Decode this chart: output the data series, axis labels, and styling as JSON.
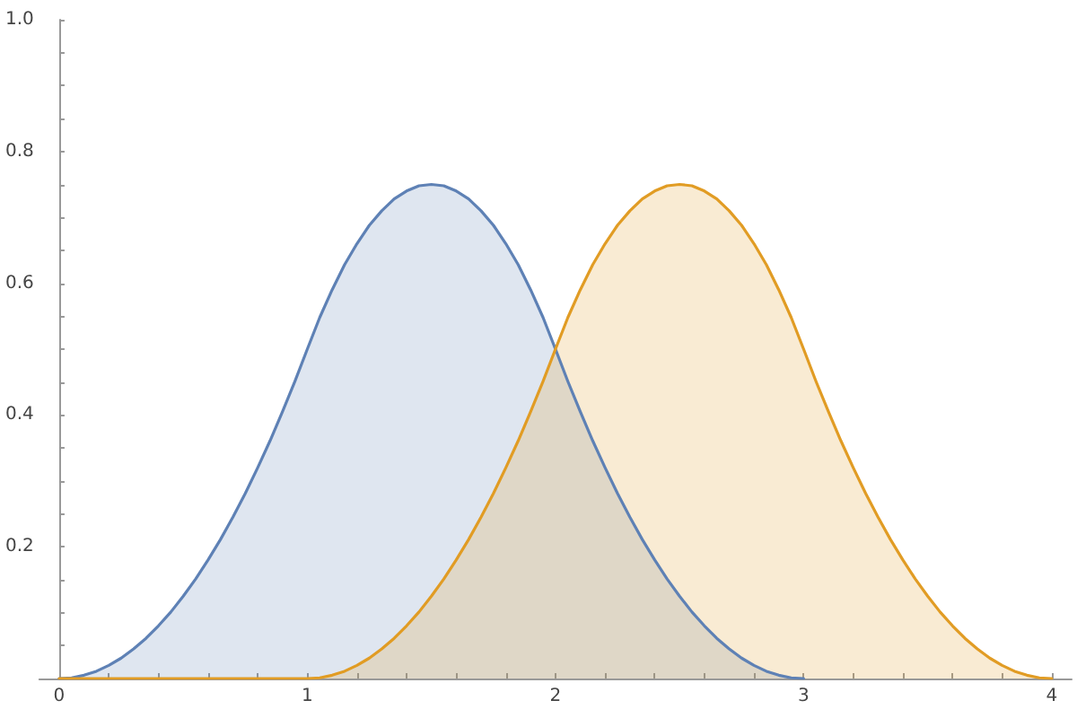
{
  "chart_data": {
    "type": "area",
    "series": [
      {
        "color": "#5e81b5",
        "x": [
          0,
          0.05,
          0.1,
          0.15,
          0.2,
          0.25,
          0.3,
          0.35,
          0.4,
          0.45,
          0.5,
          0.55,
          0.6,
          0.65,
          0.7,
          0.75,
          0.8,
          0.85,
          0.9,
          0.95,
          1,
          1.05,
          1.1,
          1.15,
          1.2,
          1.25,
          1.3,
          1.35,
          1.4,
          1.45,
          1.5,
          1.55,
          1.6,
          1.65,
          1.7,
          1.75,
          1.8,
          1.85,
          1.9,
          1.95,
          2,
          2.05,
          2.1,
          2.15,
          2.2,
          2.25,
          2.3,
          2.35,
          2.4,
          2.45,
          2.5,
          2.55,
          2.6,
          2.65,
          2.7,
          2.75,
          2.8,
          2.85,
          2.9,
          2.95,
          3
        ],
        "values": [
          0,
          0.001,
          0.005,
          0.011,
          0.02,
          0.031,
          0.045,
          0.061,
          0.08,
          0.101,
          0.125,
          0.151,
          0.18,
          0.211,
          0.245,
          0.281,
          0.32,
          0.361,
          0.405,
          0.451,
          0.5,
          0.548,
          0.59,
          0.628,
          0.66,
          0.688,
          0.71,
          0.728,
          0.74,
          0.748,
          0.75,
          0.748,
          0.74,
          0.728,
          0.71,
          0.688,
          0.66,
          0.628,
          0.59,
          0.548,
          0.5,
          0.451,
          0.405,
          0.361,
          0.32,
          0.281,
          0.245,
          0.211,
          0.18,
          0.151,
          0.125,
          0.101,
          0.08,
          0.061,
          0.045,
          0.031,
          0.02,
          0.011,
          0.005,
          0.001,
          0
        ]
      },
      {
        "color": "#e19c24",
        "x": [
          0,
          1,
          1.05,
          1.1,
          1.15,
          1.2,
          1.25,
          1.3,
          1.35,
          1.4,
          1.45,
          1.5,
          1.55,
          1.6,
          1.65,
          1.7,
          1.75,
          1.8,
          1.85,
          1.9,
          1.95,
          2,
          2.05,
          2.1,
          2.15,
          2.2,
          2.25,
          2.3,
          2.35,
          2.4,
          2.45,
          2.5,
          2.55,
          2.6,
          2.65,
          2.7,
          2.75,
          2.8,
          2.85,
          2.9,
          2.95,
          3,
          3.05,
          3.1,
          3.15,
          3.2,
          3.25,
          3.3,
          3.35,
          3.4,
          3.45,
          3.5,
          3.55,
          3.6,
          3.65,
          3.7,
          3.75,
          3.8,
          3.85,
          3.9,
          3.95,
          4
        ],
        "values": [
          0,
          0,
          0.001,
          0.005,
          0.011,
          0.02,
          0.031,
          0.045,
          0.061,
          0.08,
          0.101,
          0.125,
          0.151,
          0.18,
          0.211,
          0.245,
          0.281,
          0.32,
          0.361,
          0.405,
          0.451,
          0.5,
          0.548,
          0.59,
          0.628,
          0.66,
          0.688,
          0.71,
          0.728,
          0.74,
          0.748,
          0.75,
          0.748,
          0.74,
          0.728,
          0.71,
          0.688,
          0.66,
          0.628,
          0.59,
          0.548,
          0.5,
          0.451,
          0.405,
          0.361,
          0.32,
          0.281,
          0.245,
          0.211,
          0.18,
          0.151,
          0.125,
          0.101,
          0.08,
          0.061,
          0.045,
          0.031,
          0.02,
          0.011,
          0.005,
          0.001,
          0
        ]
      }
    ],
    "xlim": [
      -0.08,
      4.08
    ],
    "xticks": [
      0,
      {
        "value": 0.2,
        "label": null
      },
      {
        "value": 0.4,
        "label": null
      },
      {
        "value": 0.6,
        "label": null
      },
      {
        "value": 0.8,
        "label": null
      },
      1,
      {
        "value": 1.2,
        "label": null
      },
      {
        "value": 1.4,
        "label": null
      },
      {
        "value": 1.6,
        "label": null
      },
      {
        "value": 1.8,
        "label": null
      },
      2,
      {
        "value": 2.2,
        "label": null
      },
      {
        "value": 2.4,
        "label": null
      },
      {
        "value": 2.6,
        "label": null
      },
      {
        "value": 2.8,
        "label": null
      },
      3,
      {
        "value": 3.2,
        "label": null
      },
      {
        "value": 3.4,
        "label": null
      },
      {
        "value": 3.6,
        "label": null
      },
      {
        "value": 3.8,
        "label": null
      },
      4
    ],
    "ylim": [
      0,
      1
    ],
    "yticks": [
      {
        "value": 0.05,
        "label": null
      },
      {
        "value": 0.1,
        "label": null
      },
      {
        "value": 0.15,
        "label": null
      },
      0.2,
      {
        "value": 0.25,
        "label": null
      },
      {
        "value": 0.3,
        "label": null
      },
      {
        "value": 0.35,
        "label": null
      },
      0.4,
      {
        "value": 0.45,
        "label": null
      },
      {
        "value": 0.5,
        "label": null
      },
      {
        "value": 0.55,
        "label": null
      },
      0.6,
      {
        "value": 0.65,
        "label": null
      },
      {
        "value": 0.7,
        "label": null
      },
      {
        "value": 0.75,
        "label": null
      },
      0.8,
      {
        "value": 0.85,
        "label": null
      },
      {
        "value": 0.9,
        "label": null
      },
      {
        "value": 0.95,
        "label": null
      },
      {
        "value": 1,
        "label": "1.0"
      }
    ],
    "marker": "none",
    "line_style": "solid"
  }
}
